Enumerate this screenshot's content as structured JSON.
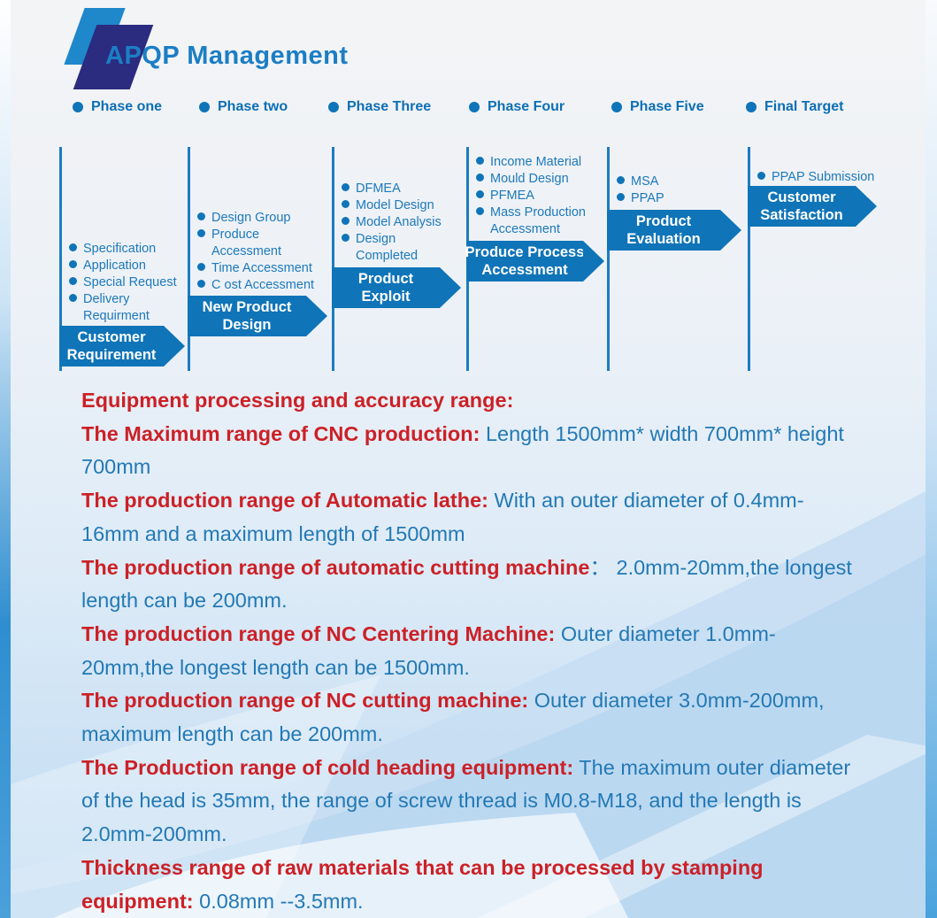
{
  "header": {
    "title": "APQP Management"
  },
  "colors": {
    "accent_blue": "#0f74b8",
    "title_blue": "#1c7ec4",
    "logo_navy": "#2b2b80",
    "logo_light_blue": "#1e88cb",
    "heading_red": "#cb2127",
    "body_blue": "#2279b5"
  },
  "phases": [
    {
      "label": "Phase one",
      "items": [
        [
          "Specification"
        ],
        [
          "Application"
        ],
        [
          "Special Request"
        ],
        [
          "Delivery",
          "Requirment"
        ]
      ],
      "banner": [
        "Customer",
        "Requirement"
      ]
    },
    {
      "label": "Phase two",
      "items": [
        [
          "Design Group"
        ],
        [
          "Produce",
          "Accessment"
        ],
        [
          "Time Accessment"
        ],
        [
          "C ost Accessment"
        ]
      ],
      "banner": [
        "New Product",
        "Design"
      ]
    },
    {
      "label": "Phase Three",
      "items": [
        [
          "DFMEA"
        ],
        [
          "Model Design"
        ],
        [
          "Model Analysis"
        ],
        [
          "Design",
          "Completed"
        ]
      ],
      "banner": [
        "Product",
        "Exploit"
      ]
    },
    {
      "label": "Phase Four",
      "items": [
        [
          "Income Material"
        ],
        [
          "Mould Design"
        ],
        [
          "PFMEA"
        ],
        [
          "Mass Production",
          "Accessment"
        ]
      ],
      "banner": [
        "Produce Process",
        "Accessment"
      ]
    },
    {
      "label": "Phase Five",
      "items": [
        [
          "MSA"
        ],
        [
          "PPAP"
        ]
      ],
      "banner": [
        "Product",
        "Evaluation"
      ]
    },
    {
      "label": "Final Target",
      "items": [
        [
          "PPAP Submission"
        ]
      ],
      "banner": [
        "Customer",
        "Satisfaction"
      ]
    }
  ],
  "specs": [
    {
      "heading": "Equipment processing and accuracy range:",
      "body": ""
    },
    {
      "heading": "The Maximum range of CNC production:",
      "body": " Length 1500mm* width 700mm* height 700mm"
    },
    {
      "heading": "The production range of Automatic lathe:",
      "body": " With an outer diameter of 0.4mm-16mm and a maximum length of 1500mm"
    },
    {
      "heading": "The production range of automatic cutting machine",
      "body": "：  2.0mm-20mm,the longest length can be 200mm."
    },
    {
      "heading": "The production range of NC Centering Machine:",
      "body": " Outer diameter 1.0mm-20mm,the longest length can be 1500mm."
    },
    {
      "heading": "The production range of NC cutting machine:",
      "body": " Outer diameter 3.0mm-200mm, maximum length can be 200mm."
    },
    {
      "heading": "The Production range of cold heading equipment:",
      "body": " The maximum outer diameter of the head is 35mm, the range of screw thread is M0.8-M18, and the length is 2.0mm-200mm."
    },
    {
      "heading": "Thickness range of raw materials that can be processed by stamping equipment:",
      "body": " 0.08mm --3.5mm."
    }
  ]
}
